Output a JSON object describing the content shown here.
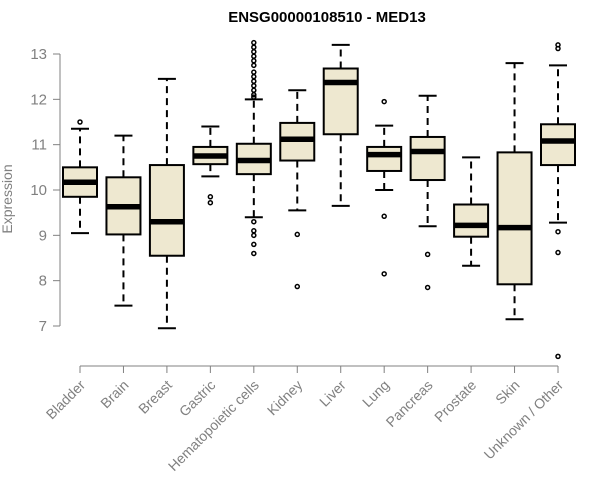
{
  "chart_data": {
    "type": "boxplot",
    "title": "ENSG00000108510 - MED13",
    "ylabel": "Expression",
    "xlabel": "",
    "ylim": [
      6.3,
      13.3
    ],
    "yticks": [
      7,
      8,
      9,
      10,
      11,
      12,
      13
    ],
    "grid": false,
    "box_fill": "#EEE8D0",
    "line_color": "#000000",
    "categories": [
      "Bladder",
      "Brain",
      "Breast",
      "Gastric",
      "Hematopoietic cells",
      "Kidney",
      "Liver",
      "Lung",
      "Pancreas",
      "Prostate",
      "Skin",
      "Unknown / Other"
    ],
    "boxes": [
      {
        "whisker_low": 9.05,
        "q1": 9.85,
        "median": 10.17,
        "q3": 10.5,
        "whisker_high": 11.35,
        "outliers": [
          11.5
        ]
      },
      {
        "whisker_low": 7.45,
        "q1": 9.02,
        "median": 9.63,
        "q3": 10.28,
        "whisker_high": 11.2,
        "outliers": []
      },
      {
        "whisker_low": 6.95,
        "q1": 8.55,
        "median": 9.3,
        "q3": 10.55,
        "whisker_high": 12.45,
        "outliers": []
      },
      {
        "whisker_low": 10.3,
        "q1": 10.57,
        "median": 10.75,
        "q3": 10.95,
        "whisker_high": 11.4,
        "outliers": [
          9.85,
          9.72
        ]
      },
      {
        "whisker_low": 9.4,
        "q1": 10.35,
        "median": 10.65,
        "q3": 11.02,
        "whisker_high": 12.0,
        "outliers": [
          13.25,
          13.15,
          13.05,
          12.95,
          12.85,
          12.75,
          12.6,
          12.5,
          12.4,
          12.3,
          12.2,
          12.1,
          12.05,
          9.3,
          9.1,
          9.0,
          8.8,
          8.6
        ]
      },
      {
        "whisker_low": 9.55,
        "q1": 10.65,
        "median": 11.12,
        "q3": 11.48,
        "whisker_high": 12.2,
        "outliers": [
          9.02,
          7.87
        ]
      },
      {
        "whisker_low": 9.65,
        "q1": 11.23,
        "median": 12.37,
        "q3": 12.68,
        "whisker_high": 13.2,
        "outliers": []
      },
      {
        "whisker_low": 10.0,
        "q1": 10.42,
        "median": 10.78,
        "q3": 10.95,
        "whisker_high": 11.42,
        "outliers": [
          11.95,
          9.42,
          8.15
        ]
      },
      {
        "whisker_low": 9.2,
        "q1": 10.22,
        "median": 10.85,
        "q3": 11.17,
        "whisker_high": 12.08,
        "outliers": [
          8.58,
          7.85
        ]
      },
      {
        "whisker_low": 8.33,
        "q1": 8.97,
        "median": 9.22,
        "q3": 9.68,
        "whisker_high": 10.72,
        "outliers": []
      },
      {
        "whisker_low": 7.15,
        "q1": 7.92,
        "median": 9.17,
        "q3": 10.83,
        "whisker_high": 12.8,
        "outliers": []
      },
      {
        "whisker_low": 9.28,
        "q1": 10.55,
        "median": 11.08,
        "q3": 11.45,
        "whisker_high": 12.75,
        "outliers": [
          13.2,
          13.12,
          9.08,
          8.62,
          6.33
        ]
      }
    ]
  }
}
